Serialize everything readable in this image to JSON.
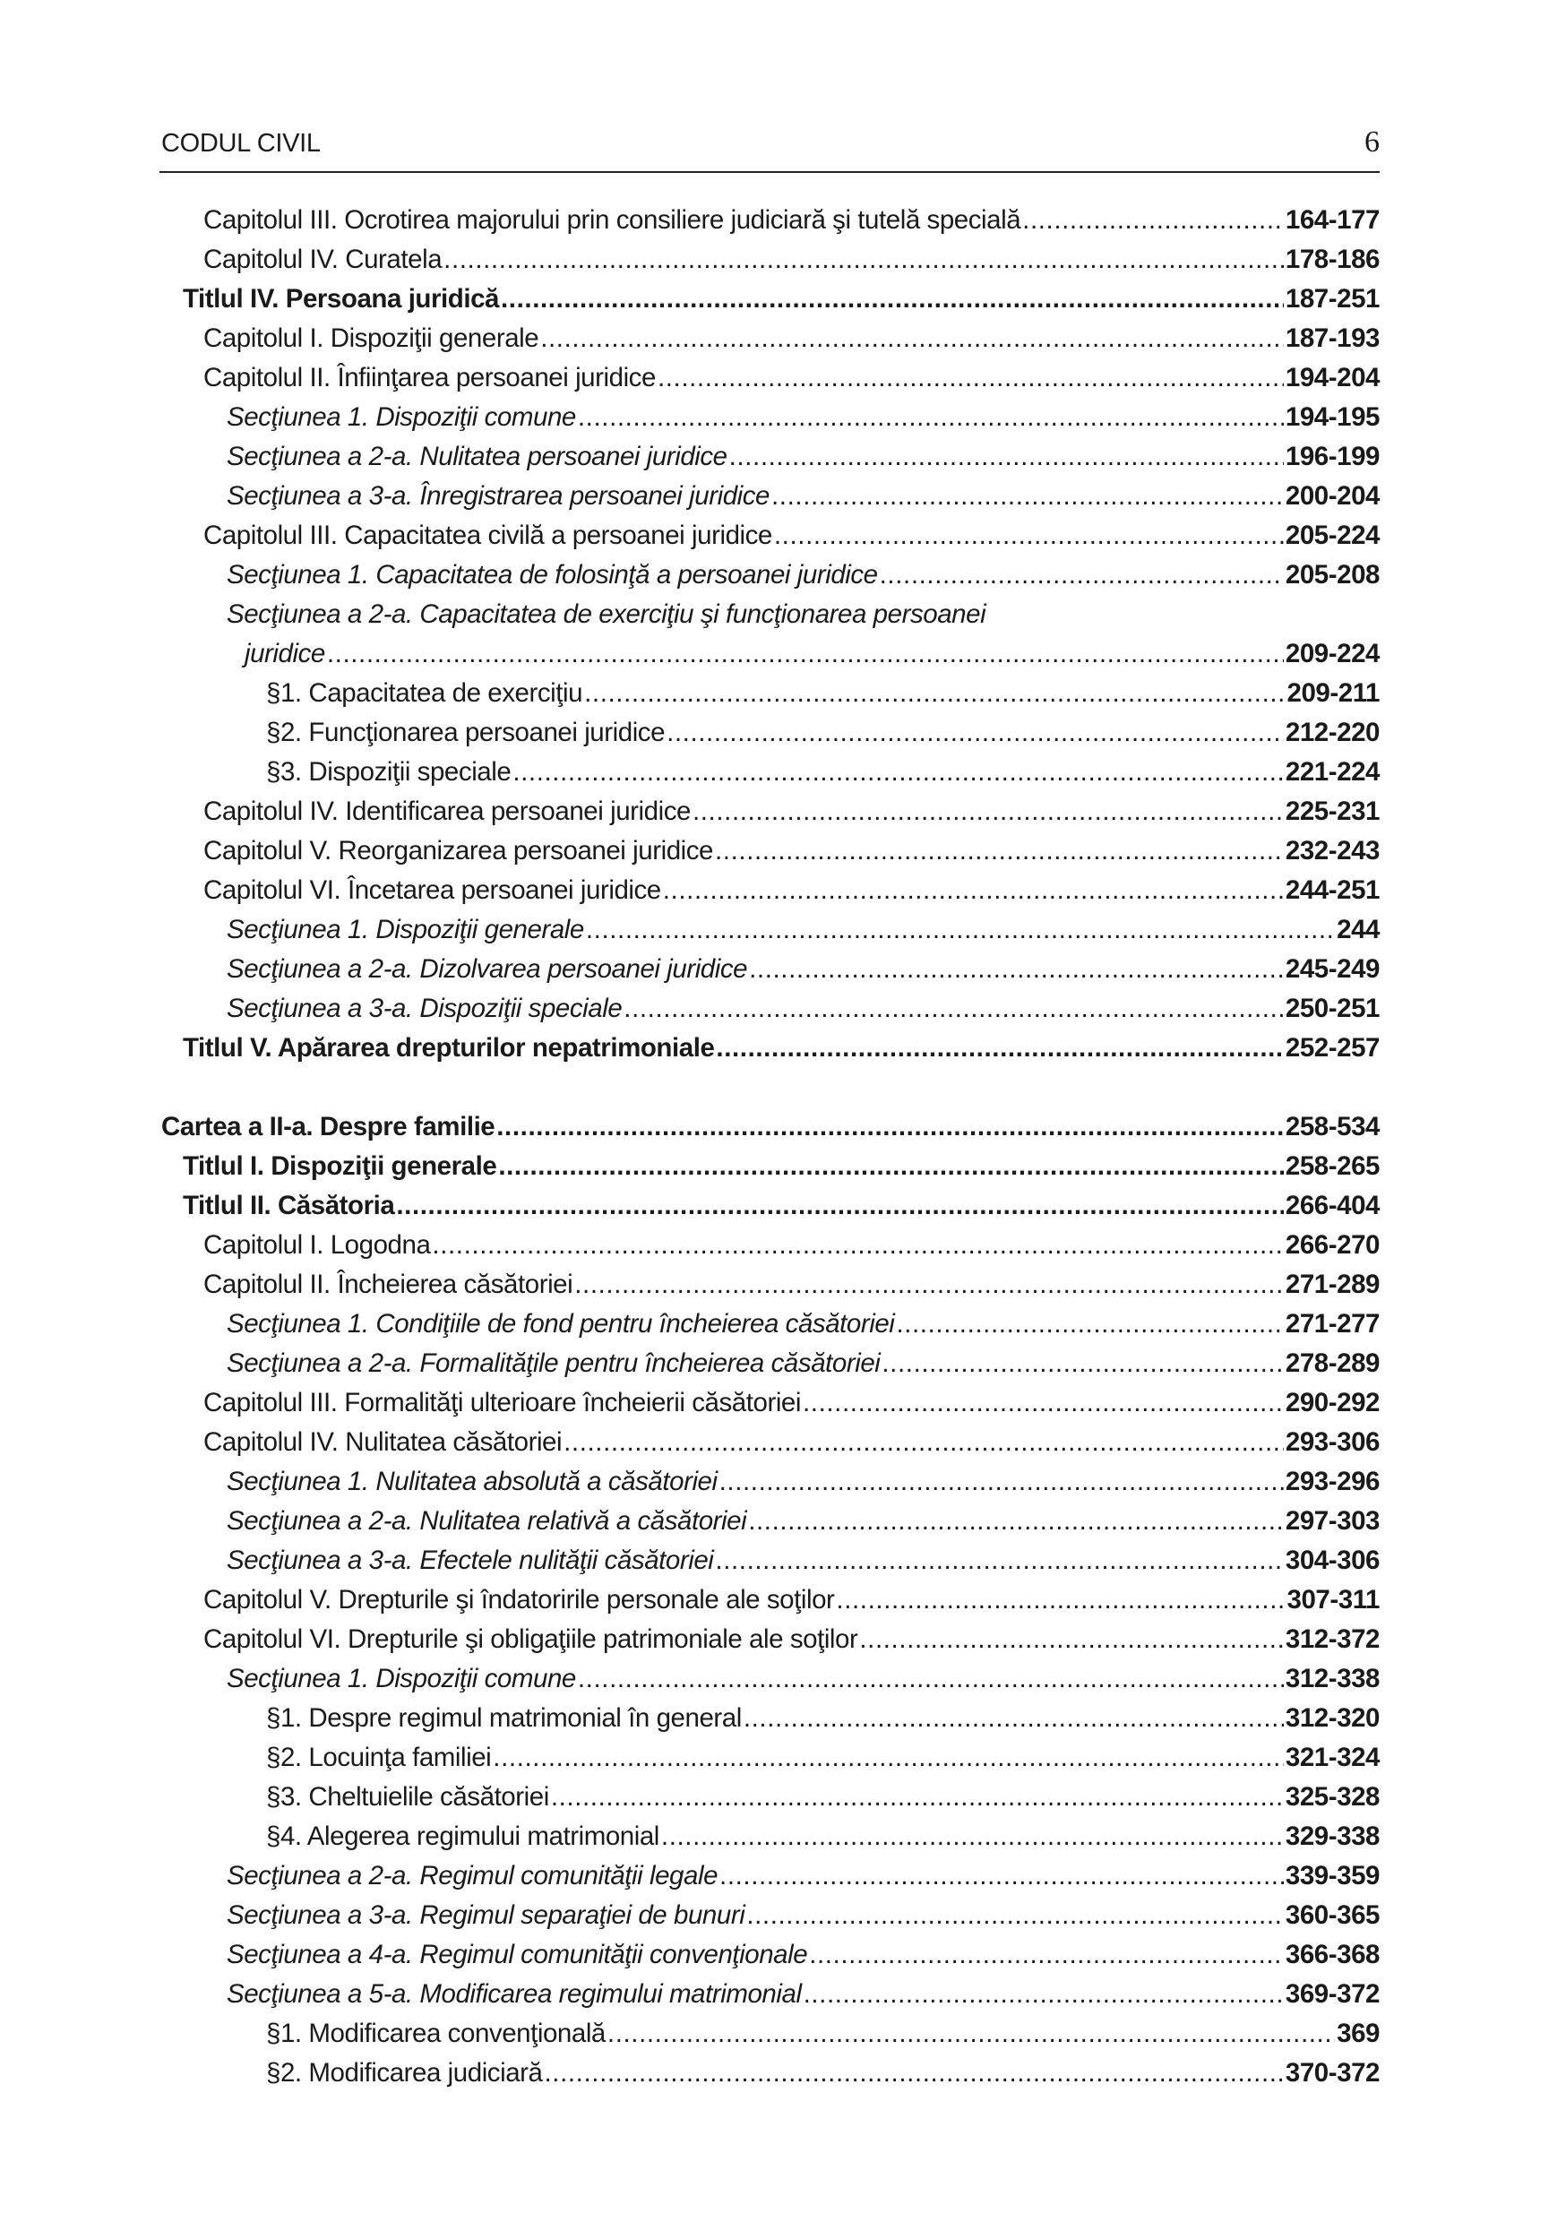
{
  "header": {
    "title": "CODUL CIVIL",
    "page_number": "6"
  },
  "entries": [
    {
      "text": "Capitolul III. Ocrotirea majorului prin consiliere judiciară şi tutelă specială",
      "pages": "164-177",
      "level": "l2",
      "style": ""
    },
    {
      "text": "Capitolul IV. Curatela",
      "pages": "178-186",
      "level": "l2",
      "style": ""
    },
    {
      "text": "Titlul IV. Persoana juridică",
      "pages": "187-251",
      "level": "l1",
      "style": "bold"
    },
    {
      "text": "Capitolul I. Dispoziţii generale",
      "pages": "187-193",
      "level": "l2",
      "style": ""
    },
    {
      "text": "Capitolul II. Înfiinţarea persoanei juridice",
      "pages": "194-204",
      "level": "l2",
      "style": ""
    },
    {
      "text": "Secţiunea 1. Dispoziţii comune",
      "pages": "194-195",
      "level": "l3",
      "style": "ital"
    },
    {
      "text": "Secţiunea a 2-a. Nulitatea persoanei juridice",
      "pages": "196-199",
      "level": "l3",
      "style": "ital"
    },
    {
      "text": "Secţiunea a 3-a. Înregistrarea persoanei juridice",
      "pages": "200-204",
      "level": "l3",
      "style": "ital"
    },
    {
      "text": "Capitolul III. Capacitatea civilă a persoanei juridice",
      "pages": "205-224",
      "level": "l2",
      "style": ""
    },
    {
      "text": "Secţiunea 1. Capacitatea de folosinţă a persoanei juridice",
      "pages": "205-208",
      "level": "l3",
      "style": "ital"
    },
    {
      "text": "Secţiunea a 2-a. Capacitatea de exerciţiu şi funcţionarea persoanei",
      "pages": "",
      "level": "l3",
      "style": "ital"
    },
    {
      "text": "juridice",
      "pages": "209-224",
      "level": "l3c",
      "style": "ital"
    },
    {
      "text": "§1. Capacitatea de exerciţiu",
      "pages": "209-211",
      "level": "l4",
      "style": ""
    },
    {
      "text": "§2. Funcţionarea persoanei juridice",
      "pages": "212-220",
      "level": "l4",
      "style": ""
    },
    {
      "text": "§3. Dispoziţii speciale",
      "pages": "221-224",
      "level": "l4",
      "style": ""
    },
    {
      "text": "Capitolul IV. Identificarea persoanei juridice",
      "pages": "225-231",
      "level": "l2",
      "style": ""
    },
    {
      "text": "Capitolul V. Reorganizarea persoanei juridice",
      "pages": "232-243",
      "level": "l2",
      "style": ""
    },
    {
      "text": "Capitolul VI. Încetarea persoanei juridice",
      "pages": "244-251",
      "level": "l2",
      "style": ""
    },
    {
      "text": "Secţiunea 1. Dispoziţii generale",
      "pages": "244",
      "level": "l3",
      "style": "ital"
    },
    {
      "text": "Secţiunea a 2-a. Dizolvarea persoanei juridice",
      "pages": "245-249",
      "level": "l3",
      "style": "ital"
    },
    {
      "text": "Secţiunea a 3-a. Dispoziţii speciale",
      "pages": "250-251",
      "level": "l3",
      "style": "ital"
    },
    {
      "text": "Titlul V. Apărarea drepturilor nepatrimoniale",
      "pages": "252-257",
      "level": "l1",
      "style": "bold"
    },
    {
      "text": "",
      "pages": "",
      "level": "l0",
      "style": "blank"
    },
    {
      "text": "Cartea a II-a. Despre familie",
      "pages": "258-534",
      "level": "l0",
      "style": "bold"
    },
    {
      "text": "Titlul I. Dispoziţii generale",
      "pages": "258-265",
      "level": "l1",
      "style": "bold"
    },
    {
      "text": "Titlul II. Căsătoria",
      "pages": "266-404",
      "level": "l1",
      "style": "bold"
    },
    {
      "text": "Capitolul I. Logodna",
      "pages": "266-270",
      "level": "l2",
      "style": ""
    },
    {
      "text": "Capitolul II. Încheierea căsătoriei",
      "pages": "271-289",
      "level": "l2",
      "style": ""
    },
    {
      "text": "Secţiunea 1. Condiţiile de fond pentru încheierea căsătoriei",
      "pages": "271-277",
      "level": "l3",
      "style": "ital"
    },
    {
      "text": "Secţiunea a 2-a. Formalităţile pentru încheierea căsătoriei",
      "pages": "278-289",
      "level": "l3",
      "style": "ital"
    },
    {
      "text": "Capitolul III. Formalităţi ulterioare încheierii căsătoriei",
      "pages": "290-292",
      "level": "l2",
      "style": ""
    },
    {
      "text": "Capitolul IV. Nulitatea căsătoriei",
      "pages": "293-306",
      "level": "l2",
      "style": ""
    },
    {
      "text": "Secţiunea 1. Nulitatea absolută a căsătoriei",
      "pages": "293-296",
      "level": "l3",
      "style": "ital"
    },
    {
      "text": "Secţiunea a 2-a. Nulitatea relativă a căsătoriei",
      "pages": "297-303",
      "level": "l3",
      "style": "ital"
    },
    {
      "text": "Secţiunea a 3-a. Efectele nulităţii căsătoriei",
      "pages": "304-306",
      "level": "l3",
      "style": "ital"
    },
    {
      "text": "Capitolul V. Drepturile şi îndatoririle personale ale soţilor",
      "pages": "307-311",
      "level": "l2",
      "style": ""
    },
    {
      "text": "Capitolul VI. Drepturile şi obligaţiile patrimoniale ale soţilor",
      "pages": "312-372",
      "level": "l2",
      "style": ""
    },
    {
      "text": "Secţiunea 1. Dispoziţii comune",
      "pages": "312-338",
      "level": "l3",
      "style": "ital"
    },
    {
      "text": "§1. Despre regimul matrimonial în general",
      "pages": "312-320",
      "level": "l4",
      "style": ""
    },
    {
      "text": "§2. Locuinţa familiei",
      "pages": "321-324",
      "level": "l4",
      "style": ""
    },
    {
      "text": "§3. Cheltuielile căsătoriei",
      "pages": "325-328",
      "level": "l4",
      "style": ""
    },
    {
      "text": "§4. Alegerea regimului matrimonial",
      "pages": "329-338",
      "level": "l4",
      "style": ""
    },
    {
      "text": "Secţiunea a 2-a. Regimul comunităţii legale",
      "pages": "339-359",
      "level": "l3",
      "style": "ital"
    },
    {
      "text": "Secţiunea a 3-a. Regimul separaţiei de bunuri",
      "pages": "360-365",
      "level": "l3",
      "style": "ital"
    },
    {
      "text": "Secţiunea a 4-a. Regimul comunităţii convenţionale",
      "pages": "366-368",
      "level": "l3",
      "style": "ital"
    },
    {
      "text": "Secţiunea a 5-a. Modificarea regimului matrimonial",
      "pages": "369-372",
      "level": "l3",
      "style": "ital"
    },
    {
      "text": "§1. Modificarea convenţională",
      "pages": "369",
      "level": "l4",
      "style": ""
    },
    {
      "text": "§2. Modificarea judiciară",
      "pages": "370-372",
      "level": "l4",
      "style": ""
    }
  ]
}
